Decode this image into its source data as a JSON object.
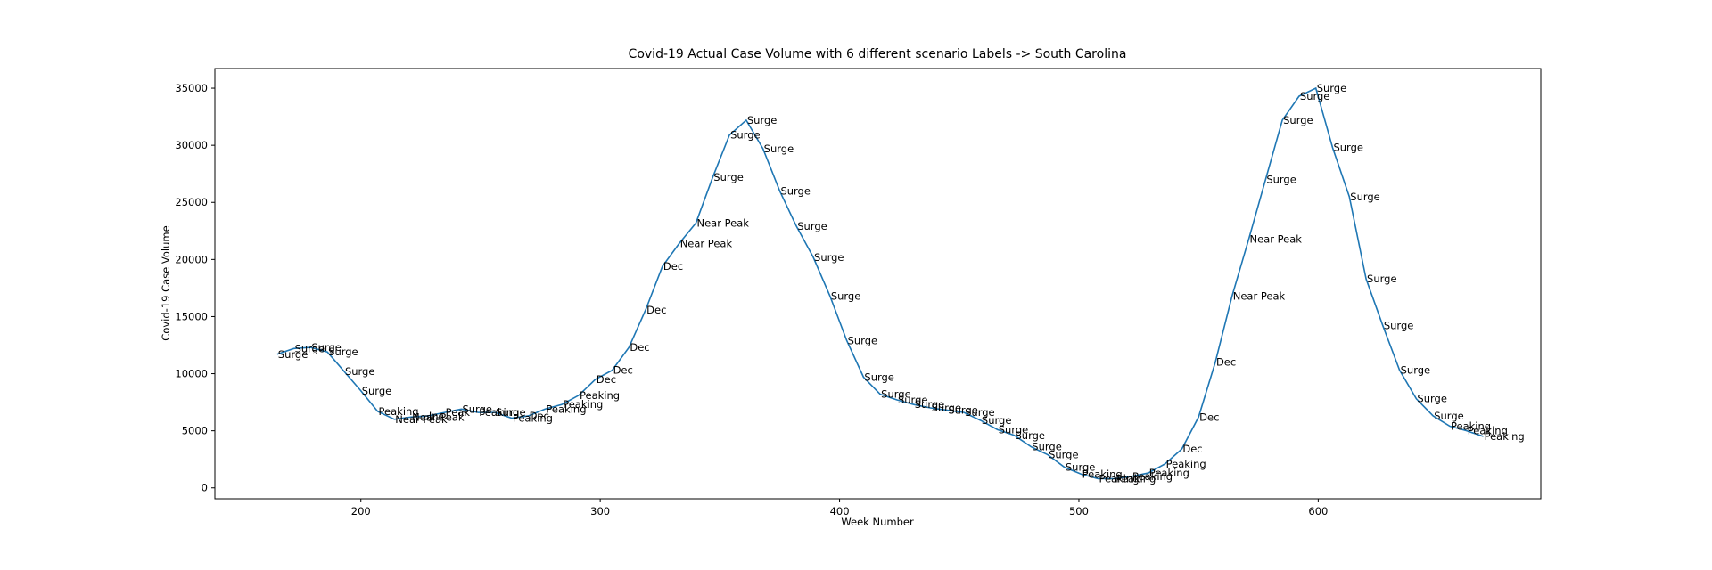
{
  "chart_data": {
    "type": "line",
    "title": "Covid-19 Actual Case Volume with 6 different scenario Labels  -> South Carolina",
    "x_label": "Week Number",
    "y_label": "Covid-19 Case Volume",
    "x": [
      165,
      172,
      179,
      186,
      193,
      200,
      207,
      214,
      221,
      228,
      235,
      242,
      249,
      256,
      263,
      270,
      277,
      284,
      291,
      298,
      305,
      312,
      319,
      326,
      333,
      340,
      347,
      354,
      361,
      368,
      375,
      382,
      389,
      396,
      403,
      410,
      417,
      424,
      431,
      438,
      445,
      452,
      459,
      466,
      473,
      480,
      487,
      494,
      501,
      508,
      515,
      522,
      529,
      536,
      543,
      550,
      557,
      564,
      571,
      578,
      585,
      592,
      599,
      606,
      613,
      620,
      627,
      634,
      641,
      648,
      655,
      662,
      669
    ],
    "series": [
      {
        "name": "Case Volume",
        "color": "#1f77b4",
        "values": [
          11700,
          12200,
          12300,
          11900,
          10200,
          8500,
          6700,
          6000,
          6200,
          6300,
          6600,
          6900,
          6600,
          6600,
          6100,
          6300,
          6900,
          7300,
          8100,
          9500,
          10300,
          12300,
          15600,
          19400,
          21400,
          23200,
          27200,
          30900,
          32200,
          29700,
          26000,
          22900,
          20200,
          16800,
          12900,
          9700,
          8200,
          7700,
          7300,
          7000,
          6800,
          6600,
          5900,
          5100,
          4600,
          3600,
          2900,
          1800,
          1200,
          800,
          800,
          1000,
          1300,
          2100,
          3400,
          6200,
          11000,
          16800,
          21800,
          27000,
          32200,
          34300,
          35000,
          29800,
          25500,
          18300,
          14200,
          10300,
          7800,
          6300,
          5400,
          5000,
          4500
        ],
        "point_labels": [
          "Surge",
          "Surge",
          "Surge",
          "Surge",
          "Surge",
          "Surge",
          "Peaking",
          "Near Peak",
          "Near Peak",
          "Inc",
          "Peak",
          "Surge",
          "Peaking",
          "Surge",
          "Peaking",
          "Dec",
          "Peaking",
          "Peaking",
          "Peaking",
          "Dec",
          "Dec",
          "Dec",
          "Dec",
          "Dec",
          "Near Peak",
          "Near Peak",
          "Surge",
          "Surge",
          "Surge",
          "Surge",
          "Surge",
          "Surge",
          "Surge",
          "Surge",
          "Surge",
          "Surge",
          "Surge",
          "Surge",
          "Surge",
          "Surge",
          "Surge",
          "Surge",
          "Surge",
          "Surge",
          "Surge",
          "Surge",
          "Surge",
          "Surge",
          "Peaking",
          "Peaking",
          "Peaking",
          "Peaking",
          "Peaking",
          "Peaking",
          "Dec",
          "Dec",
          "Dec",
          "Near Peak",
          "Near Peak",
          "Surge",
          "Surge",
          "Surge",
          "Surge",
          "Surge",
          "Surge",
          "Surge",
          "Surge",
          "Surge",
          "Surge",
          "Surge",
          "Peaking",
          "Peaking",
          "Peaking"
        ]
      }
    ],
    "xlim": [
      139,
      693
    ],
    "ylim": [
      -956,
      36720
    ],
    "xticks": [
      200,
      300,
      400,
      500,
      600
    ],
    "yticks": [
      0,
      5000,
      10000,
      15000,
      20000,
      25000,
      30000,
      35000
    ]
  }
}
